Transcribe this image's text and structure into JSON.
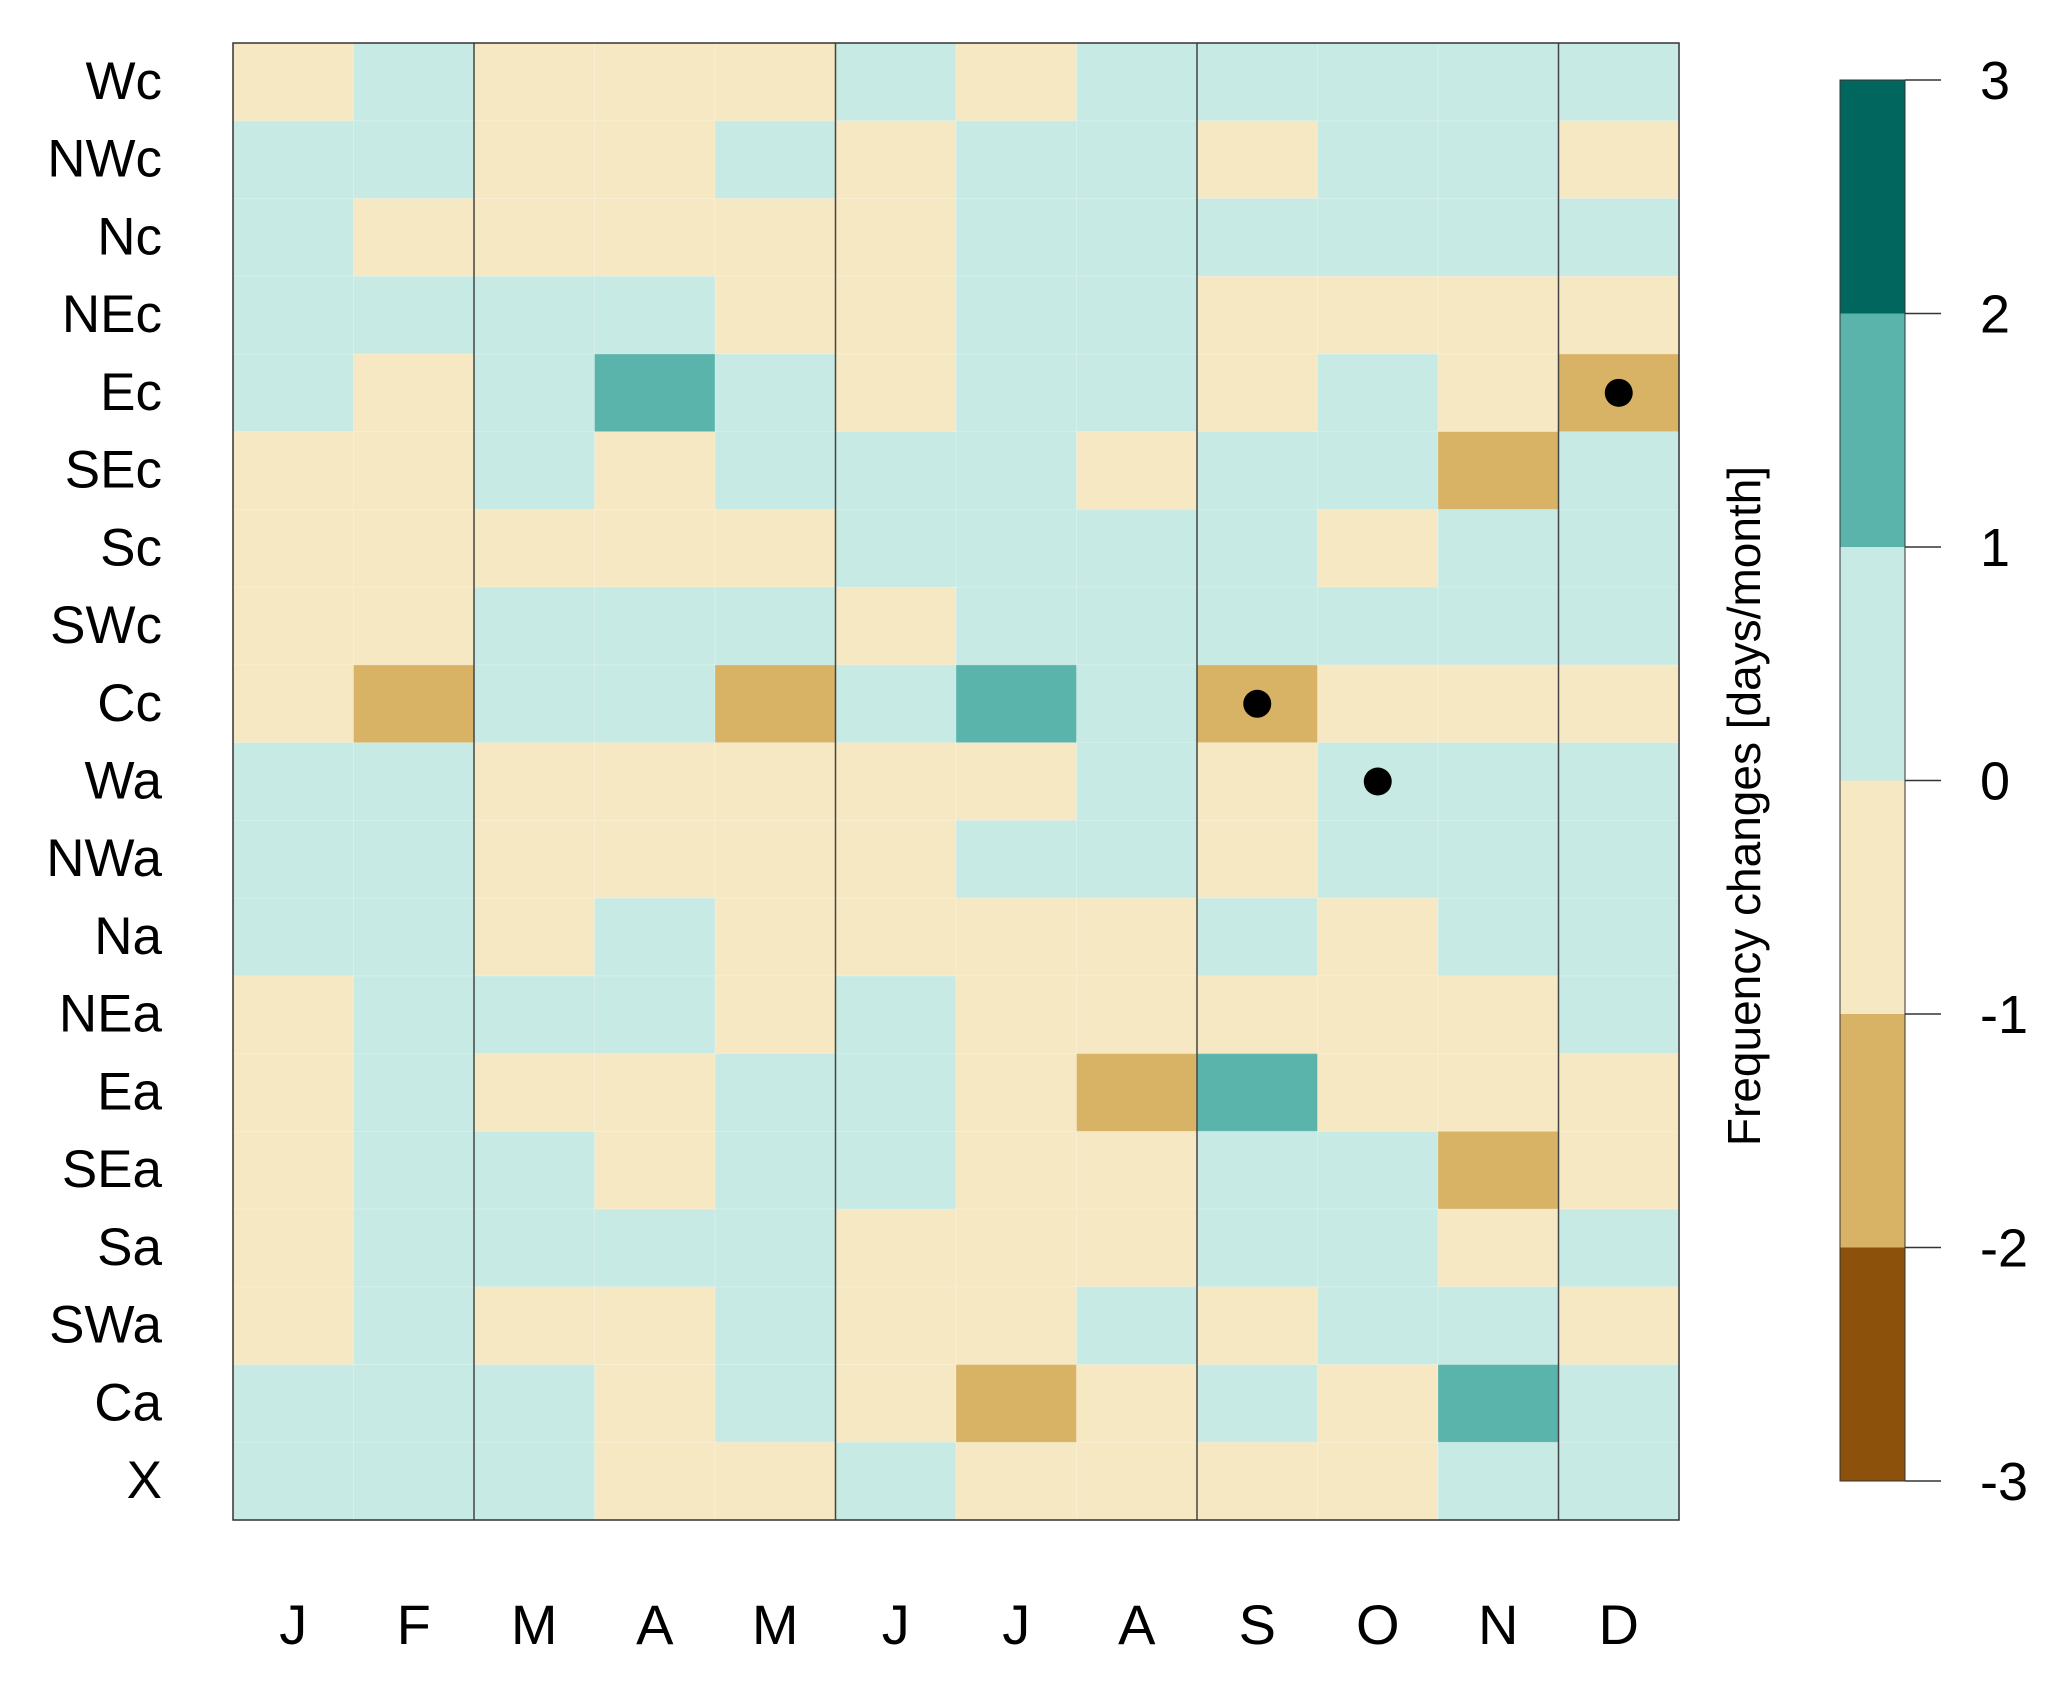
{
  "chart_data": {
    "type": "heatmap",
    "colorbar_label": "Frequency changes [days/month]",
    "columns": [
      "J",
      "F",
      "M",
      "A",
      "M",
      "J",
      "J",
      "A",
      "S",
      "O",
      "N",
      "D"
    ],
    "rows": [
      "Wc",
      "NWc",
      "Nc",
      "NEc",
      "Ec",
      "SEc",
      "Sc",
      "SWc",
      "Cc",
      "Wa",
      "NWa",
      "Na",
      "NEa",
      "Ea",
      "SEa",
      "Sa",
      "SWa",
      "Ca",
      "X"
    ],
    "values": [
      [
        -0.5,
        0.5,
        -0.5,
        -0.5,
        -0.5,
        0.5,
        -0.5,
        0.5,
        0.5,
        0.5,
        0.5,
        0.5
      ],
      [
        0.5,
        0.5,
        -0.5,
        -0.5,
        0.5,
        -0.5,
        0.5,
        0.5,
        -0.5,
        0.5,
        0.5,
        -0.5
      ],
      [
        0.5,
        -0.5,
        -0.5,
        -0.5,
        -0.5,
        -0.5,
        0.5,
        0.5,
        0.5,
        0.5,
        0.5,
        0.5
      ],
      [
        0.5,
        0.5,
        0.5,
        0.5,
        -0.5,
        -0.5,
        0.5,
        0.5,
        -0.5,
        -0.5,
        -0.5,
        -0.5
      ],
      [
        0.5,
        -0.5,
        0.5,
        1.5,
        0.5,
        -0.5,
        0.5,
        0.5,
        -0.5,
        0.5,
        -0.5,
        -1.5
      ],
      [
        -0.5,
        -0.5,
        0.5,
        -0.5,
        0.5,
        0.5,
        0.5,
        -0.5,
        0.5,
        0.5,
        -1.5,
        0.5
      ],
      [
        -0.5,
        -0.5,
        -0.5,
        -0.5,
        -0.5,
        0.5,
        0.5,
        0.5,
        0.5,
        -0.5,
        0.5,
        0.5
      ],
      [
        -0.5,
        -0.5,
        0.5,
        0.5,
        0.5,
        -0.5,
        0.5,
        0.5,
        0.5,
        0.5,
        0.5,
        0.5
      ],
      [
        -0.5,
        -1.5,
        0.5,
        0.5,
        -1.5,
        0.5,
        1.5,
        0.5,
        -1.5,
        -0.5,
        -0.5,
        -0.5
      ],
      [
        0.5,
        0.5,
        -0.5,
        -0.5,
        -0.5,
        -0.5,
        -0.5,
        0.5,
        -0.5,
        0.5,
        0.5,
        0.5
      ],
      [
        0.5,
        0.5,
        -0.5,
        -0.5,
        -0.5,
        -0.5,
        0.5,
        0.5,
        -0.5,
        0.5,
        0.5,
        0.5
      ],
      [
        0.5,
        0.5,
        -0.5,
        0.5,
        -0.5,
        -0.5,
        -0.5,
        -0.5,
        0.5,
        -0.5,
        0.5,
        0.5
      ],
      [
        -0.5,
        0.5,
        0.5,
        0.5,
        -0.5,
        0.5,
        -0.5,
        -0.5,
        -0.5,
        -0.5,
        -0.5,
        0.5
      ],
      [
        -0.5,
        0.5,
        -0.5,
        -0.5,
        0.5,
        0.5,
        -0.5,
        -1.5,
        1.5,
        -0.5,
        -0.5,
        -0.5
      ],
      [
        -0.5,
        0.5,
        0.5,
        -0.5,
        0.5,
        0.5,
        -0.5,
        -0.5,
        0.5,
        0.5,
        -1.5,
        -0.5
      ],
      [
        -0.5,
        0.5,
        0.5,
        0.5,
        0.5,
        -0.5,
        -0.5,
        -0.5,
        0.5,
        0.5,
        -0.5,
        0.5
      ],
      [
        -0.5,
        0.5,
        -0.5,
        -0.5,
        0.5,
        -0.5,
        -0.5,
        0.5,
        -0.5,
        0.5,
        0.5,
        -0.5
      ],
      [
        0.5,
        0.5,
        0.5,
        -0.5,
        0.5,
        -0.5,
        -1.5,
        -0.5,
        0.5,
        -0.5,
        1.5,
        0.5
      ],
      [
        0.5,
        0.5,
        0.5,
        -0.5,
        -0.5,
        0.5,
        -0.5,
        -0.5,
        -0.5,
        -0.5,
        0.5,
        0.5
      ]
    ],
    "significant": [
      {
        "row": "Ec",
        "col_index": 11
      },
      {
        "row": "Cc",
        "col_index": 8
      },
      {
        "row": "Wa",
        "col_index": 9
      }
    ],
    "season_dividers_after_col_index": [
      1,
      4,
      7,
      10
    ],
    "colorbar": {
      "ticks": [
        3,
        2,
        1,
        0,
        -1,
        -2,
        -3
      ],
      "bins": [
        {
          "from": -3,
          "to": -2,
          "color": "#8c510a"
        },
        {
          "from": -2,
          "to": -1,
          "color": "#d8b365"
        },
        {
          "from": -1,
          "to": 0,
          "color": "#f6e8c3"
        },
        {
          "from": 0,
          "to": 1,
          "color": "#c7eae5"
        },
        {
          "from": 1,
          "to": 2,
          "color": "#5ab4ac"
        },
        {
          "from": 2,
          "to": 3,
          "color": "#01665e"
        }
      ]
    }
  }
}
